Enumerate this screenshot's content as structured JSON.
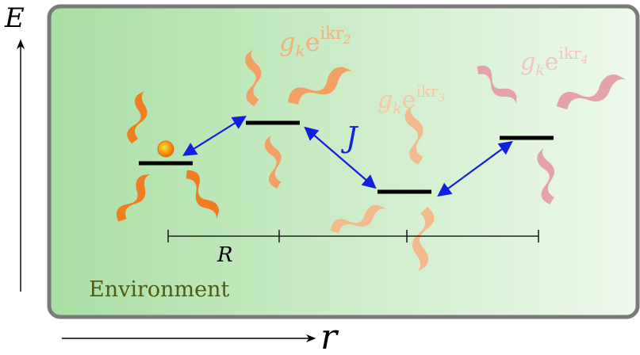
{
  "axes": {
    "energy_label": "E",
    "position_label": "r"
  },
  "environment": {
    "label": "Environment"
  },
  "coupling": {
    "label": "J"
  },
  "distance": {
    "label": "R"
  },
  "emission_labels": [
    {
      "prefix": "g",
      "sub": "k",
      "base": "e",
      "exp_prefix": "ikr",
      "exp_sub": "2"
    },
    {
      "prefix": "g",
      "sub": "k",
      "base": "e",
      "exp_prefix": "ikr",
      "exp_sub": "3"
    },
    {
      "prefix": "g",
      "sub": "k",
      "base": "e",
      "exp_prefix": "ikr",
      "exp_sub": "4"
    }
  ],
  "colors": {
    "environment_start": "#a9dfa3",
    "environment_end": "#eaf8e8",
    "environment_border": "#7a7a7a",
    "environment_text": "#4d5c12",
    "arrow": "#1020e0",
    "emitter_1": "#f07d20",
    "emitter_2": "#f3a064",
    "emitter_3": "#f4b98c",
    "emitter_4": "#e3a3a8",
    "excitation_dot": "#f39a14"
  }
}
